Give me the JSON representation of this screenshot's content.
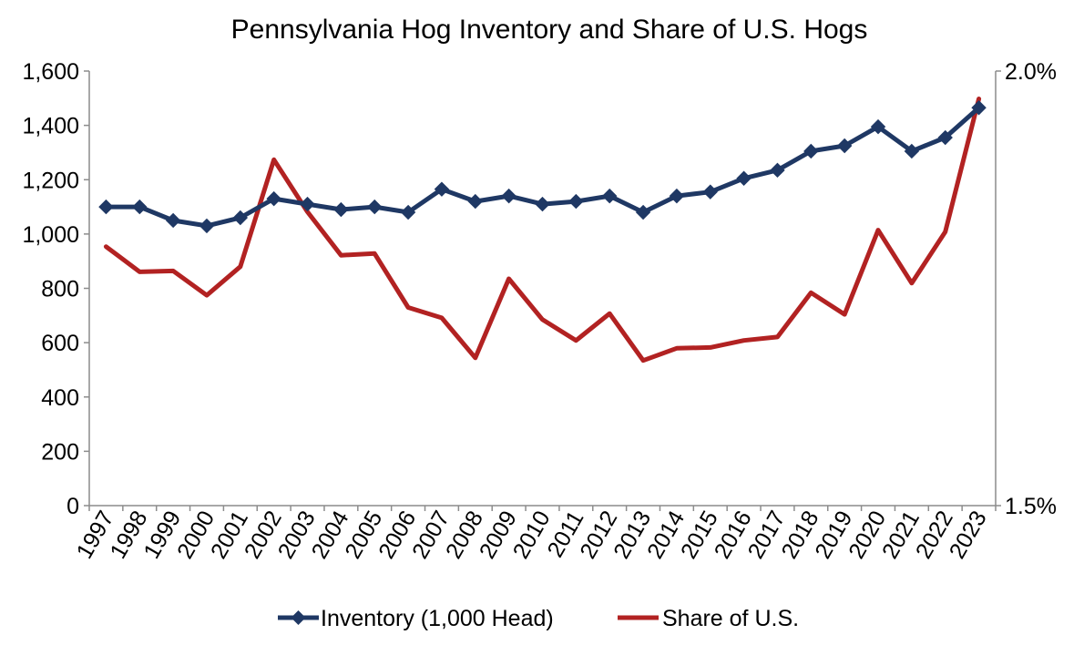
{
  "chart_data": {
    "type": "line",
    "title": "Pennsylvania Hog Inventory and Share of U.S. Hogs",
    "categories": [
      "1997",
      "1998",
      "1999",
      "2000",
      "2001",
      "2002",
      "2003",
      "2004",
      "2005",
      "2006",
      "2007",
      "2008",
      "2009",
      "2010",
      "2011",
      "2012",
      "2013",
      "2014",
      "2015",
      "2016",
      "2017",
      "2018",
      "2019",
      "2020",
      "2021",
      "2022",
      "2023"
    ],
    "y_left": {
      "ylim": [
        0,
        1600
      ],
      "ticks": [
        0,
        200,
        400,
        600,
        800,
        1000,
        1200,
        1400,
        1600
      ],
      "tick_labels": [
        "0",
        "200",
        "400",
        "600",
        "800",
        "1,000",
        "1,200",
        "1,400",
        "1,600"
      ]
    },
    "y_right": {
      "ylim": [
        1.5,
        2.0
      ],
      "ticks": [
        1.5,
        2.0
      ],
      "tick_labels": [
        "1.5%",
        "2.0%"
      ]
    },
    "series": [
      {
        "name": "Inventory (1,000 Head)",
        "axis": "left",
        "color": "#1f3864",
        "marker": "diamond",
        "values": [
          1100,
          1100,
          1050,
          1030,
          1060,
          1130,
          1110,
          1090,
          1100,
          1080,
          1165,
          1120,
          1140,
          1110,
          1120,
          1140,
          1080,
          1140,
          1155,
          1205,
          1235,
          1305,
          1325,
          1395,
          1305,
          1355,
          1465
        ]
      },
      {
        "name": "Share of U.S.",
        "axis": "right",
        "color": "#b22222",
        "marker": "none",
        "values": [
          1.798,
          1.769,
          1.77,
          1.742,
          1.775,
          1.898,
          1.838,
          1.788,
          1.79,
          1.728,
          1.716,
          1.67,
          1.761,
          1.714,
          1.69,
          1.721,
          1.667,
          1.681,
          1.682,
          1.69,
          1.694,
          1.745,
          1.72,
          1.817,
          1.756,
          1.815,
          1.968
        ]
      }
    ],
    "legend": "bottom",
    "grid": false
  }
}
